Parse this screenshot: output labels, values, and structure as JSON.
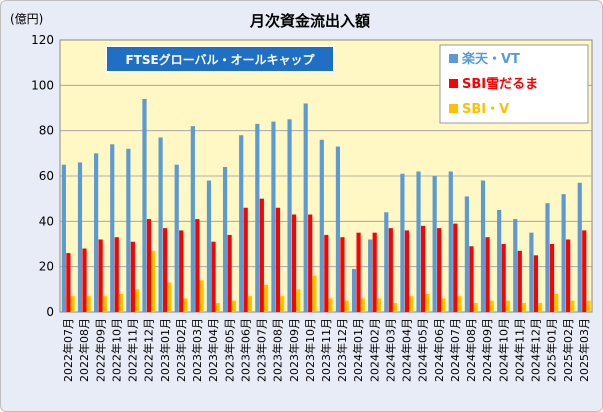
{
  "chart_data": {
    "type": "bar",
    "title": "月次資金流出入額",
    "unit_label": "(億円)",
    "annotation": "FTSEグローバル・オールキャップ",
    "ylim": [
      0,
      120
    ],
    "yticks": [
      0,
      20,
      40,
      60,
      80,
      100,
      120
    ],
    "grid": true,
    "legend_position": "top-right",
    "categories": [
      "2022年07月",
      "2022年08月",
      "2022年09月",
      "2022年10月",
      "2022年11月",
      "2022年12月",
      "2023年01月",
      "2023年02月",
      "2023年03月",
      "2023年04月",
      "2023年05月",
      "2023年06月",
      "2023年07月",
      "2023年08月",
      "2023年09月",
      "2023年10月",
      "2023年11月",
      "2023年12月",
      "2024年01月",
      "2024年02月",
      "2024年03月",
      "2024年04月",
      "2024年05月",
      "2024年06月",
      "2024年07月",
      "2024年08月",
      "2024年09月",
      "2024年10月",
      "2024年11月",
      "2024年12月",
      "2025年01月",
      "2025年02月",
      "2025年03月"
    ],
    "series": [
      {
        "name": "楽天・VT",
        "color": "#5b9bd5",
        "values": [
          65,
          66,
          70,
          74,
          72,
          94,
          77,
          65,
          82,
          58,
          64,
          78,
          83,
          84,
          85,
          92,
          76,
          73,
          19,
          32,
          44,
          61,
          62,
          60,
          62,
          51,
          58,
          45,
          41,
          35,
          48,
          52,
          57
        ]
      },
      {
        "name": "SBI雪だるま",
        "color": "#ff0000",
        "values": [
          26,
          28,
          32,
          33,
          31,
          41,
          37,
          36,
          41,
          31,
          34,
          46,
          50,
          46,
          43,
          43,
          34,
          33,
          35,
          35,
          37,
          36,
          38,
          37,
          39,
          29,
          33,
          30,
          27,
          25,
          30,
          32,
          36
        ]
      },
      {
        "name": "SBI・V",
        "color": "#ffc000",
        "values": [
          7,
          7,
          7,
          8,
          10,
          27,
          13,
          6,
          14,
          4,
          5,
          7,
          12,
          7,
          10,
          16,
          6,
          5,
          6,
          6,
          4,
          7,
          8,
          6,
          7,
          4,
          5,
          5,
          4,
          4,
          8,
          5,
          5
        ]
      }
    ]
  }
}
